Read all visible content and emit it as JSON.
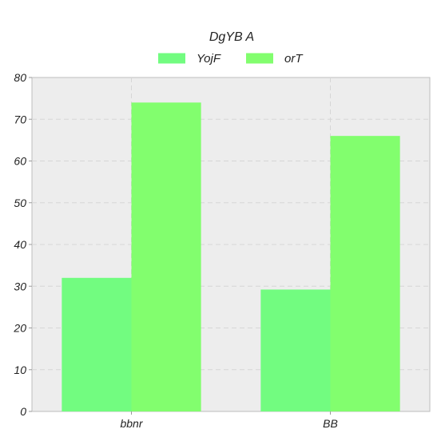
{
  "chart_data": {
    "type": "bar",
    "title": "DgYB A",
    "categories": [
      "bbnr",
      "BB"
    ],
    "series": [
      {
        "name": "YojF",
        "values": [
          32,
          29.2
        ],
        "color": "#72fc80"
      },
      {
        "name": "orT",
        "values": [
          74,
          66
        ],
        "color": "#82fe6e"
      }
    ],
    "xlabel": "",
    "ylabel": "",
    "ylim": [
      0,
      80
    ],
    "yticks": [
      0,
      10,
      20,
      30,
      40,
      50,
      60,
      70,
      80
    ],
    "grid": true,
    "legend_position": "top-center"
  }
}
